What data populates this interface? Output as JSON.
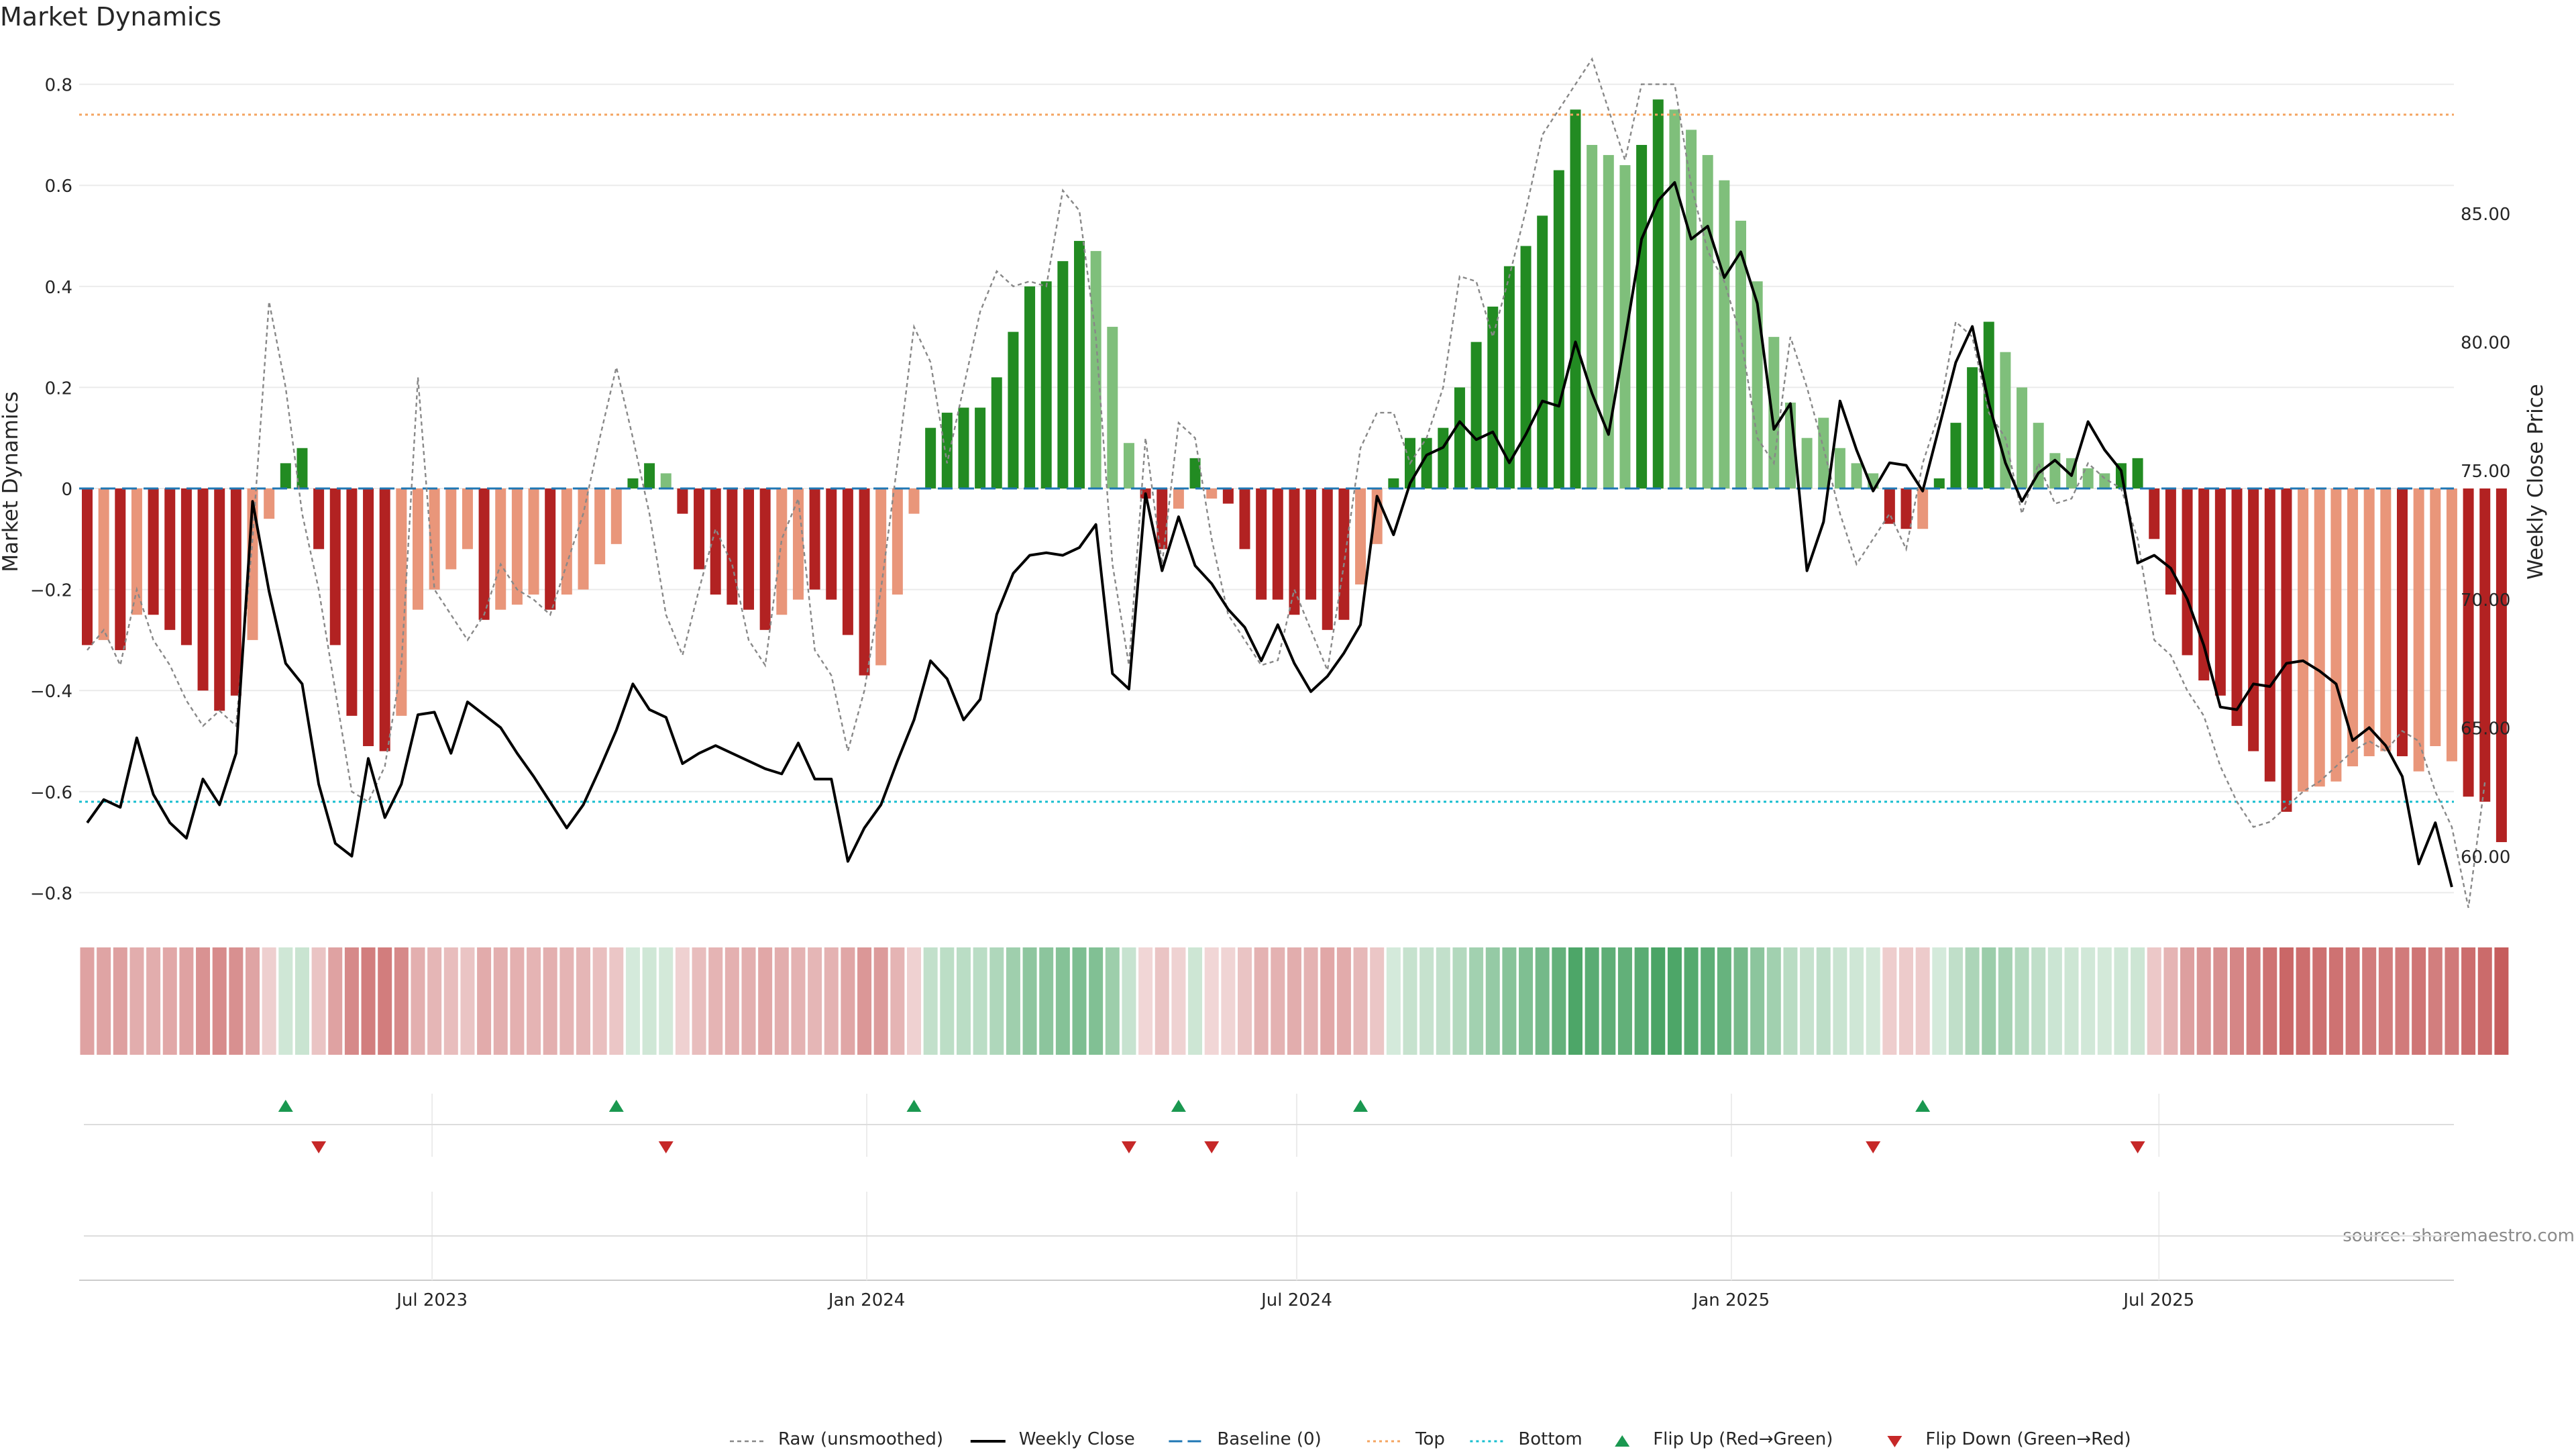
{
  "chart_data": {
    "type": "bar",
    "title": "Market Dynamics",
    "ylabel": "Market Dynamics",
    "y2label": "Weekly Close Price",
    "source": "source: sharemaestro.com",
    "ylim": [
      -0.85,
      0.85
    ],
    "y2lim": [
      57.6,
      91.0
    ],
    "yticks": [
      "0.8",
      "0.6",
      "0.4",
      "0.2",
      "0",
      "−0.2",
      "−0.4",
      "−0.6",
      "−0.8"
    ],
    "y2ticks": [
      "85.00",
      "80.00",
      "75.00",
      "70.00",
      "65.00",
      "60.00"
    ],
    "xticks": [
      "Jul 2023",
      "Jan 2024",
      "Jul 2024",
      "Jan 2025",
      "Jul 2025"
    ],
    "xtick_dates": [
      "2023-07-01",
      "2024-01-01",
      "2024-07-01",
      "2025-01-01",
      "2025-07-01"
    ],
    "start_date": "2023-02-05",
    "top_level": 0.74,
    "bottom_level": -0.62,
    "grid": true,
    "legend_position": "bottom-center",
    "colors": {
      "strong_green": "#228b22",
      "weak_green": "#7fbf7b",
      "strong_red": "#b22222",
      "weak_red": "#e9967a",
      "raw": "#888888",
      "close": "#000000",
      "baseline": "#1f77b4",
      "top": "#f4a460",
      "bottom": "#17becf",
      "flip_up": "#1a9850",
      "flip_down": "#c62828"
    },
    "legend": [
      {
        "label": "Raw (unsmoothed)",
        "style": "raw"
      },
      {
        "label": "Weekly Close",
        "style": "close"
      },
      {
        "label": "Baseline (0)",
        "style": "baseline"
      },
      {
        "label": "Top",
        "style": "top"
      },
      {
        "label": "Bottom",
        "style": "bottom"
      },
      {
        "label": "Flip Up (Red→Green)",
        "style": "flip_up"
      },
      {
        "label": "Flip Down (Green→Red)",
        "style": "flip_down"
      }
    ],
    "series": [
      {
        "name": "Market Dynamics",
        "values": [
          -0.31,
          -0.3,
          -0.32,
          -0.25,
          -0.25,
          -0.28,
          -0.31,
          -0.4,
          -0.44,
          -0.41,
          -0.3,
          -0.06,
          0.05,
          0.08,
          -0.12,
          -0.31,
          -0.45,
          -0.51,
          -0.52,
          -0.45,
          -0.24,
          -0.2,
          -0.16,
          -0.12,
          -0.26,
          -0.24,
          -0.23,
          -0.21,
          -0.24,
          -0.21,
          -0.2,
          -0.15,
          -0.11,
          0.02,
          0.05,
          0.03,
          -0.05,
          -0.16,
          -0.21,
          -0.23,
          -0.24,
          -0.28,
          -0.25,
          -0.22,
          -0.2,
          -0.22,
          -0.29,
          -0.37,
          -0.35,
          -0.21,
          -0.05,
          0.12,
          0.15,
          0.16,
          0.16,
          0.22,
          0.31,
          0.4,
          0.41,
          0.45,
          0.49,
          0.47,
          0.32,
          0.09,
          -0.02,
          -0.12,
          -0.04,
          0.06,
          -0.02,
          -0.03,
          -0.12,
          -0.22,
          -0.22,
          -0.25,
          -0.22,
          -0.28,
          -0.26,
          -0.19,
          -0.11,
          0.02,
          0.1,
          0.1,
          0.12,
          0.2,
          0.29,
          0.36,
          0.44,
          0.48,
          0.54,
          0.63,
          0.75,
          0.68,
          0.66,
          0.64,
          0.68,
          0.77,
          0.75,
          0.71,
          0.66,
          0.61,
          0.53,
          0.41,
          0.3,
          0.17,
          0.1,
          0.14,
          0.08,
          0.05,
          0.03,
          -0.07,
          -0.08,
          -0.08,
          0.02,
          0.13,
          0.24,
          0.33,
          0.27,
          0.2,
          0.13,
          0.07,
          0.06,
          0.04,
          0.03,
          0.05,
          0.06,
          -0.1,
          -0.21,
          -0.33,
          -0.38,
          -0.41,
          -0.47,
          -0.52,
          -0.58,
          -0.64,
          -0.6,
          -0.59,
          -0.58,
          -0.55,
          -0.53,
          -0.52,
          -0.53,
          -0.56,
          -0.51,
          -0.54,
          -0.61,
          -0.62,
          -0.7
        ],
        "strength": [
          "strong",
          "weak",
          "strong",
          "weak",
          "strong",
          "strong",
          "strong",
          "strong",
          "strong",
          "strong",
          "weak",
          "weak",
          "strong",
          "strong",
          "strong",
          "strong",
          "strong",
          "strong",
          "strong",
          "weak",
          "weak",
          "weak",
          "weak",
          "weak",
          "strong",
          "weak",
          "weak",
          "weak",
          "strong",
          "weak",
          "weak",
          "weak",
          "weak",
          "strong",
          "strong",
          "weak",
          "strong",
          "strong",
          "strong",
          "strong",
          "strong",
          "strong",
          "weak",
          "weak",
          "strong",
          "strong",
          "strong",
          "strong",
          "weak",
          "weak",
          "weak",
          "strong",
          "strong",
          "strong",
          "strong",
          "strong",
          "strong",
          "strong",
          "strong",
          "strong",
          "strong",
          "weak",
          "weak",
          "weak",
          "strong",
          "strong",
          "weak",
          "strong",
          "weak",
          "strong",
          "strong",
          "strong",
          "strong",
          "strong",
          "strong",
          "strong",
          "strong",
          "weak",
          "weak",
          "strong",
          "strong",
          "strong",
          "strong",
          "strong",
          "strong",
          "strong",
          "strong",
          "strong",
          "strong",
          "strong",
          "strong",
          "weak",
          "weak",
          "weak",
          "strong",
          "strong",
          "weak",
          "weak",
          "weak",
          "weak",
          "weak",
          "weak",
          "weak",
          "weak",
          "weak",
          "weak",
          "weak",
          "weak",
          "weak",
          "strong",
          "strong",
          "weak",
          "strong",
          "strong",
          "strong",
          "strong",
          "weak",
          "weak",
          "weak",
          "weak",
          "weak",
          "weak",
          "weak",
          "strong",
          "strong",
          "strong",
          "strong",
          "strong",
          "strong",
          "strong",
          "strong",
          "strong",
          "strong",
          "strong",
          "weak",
          "weak",
          "weak",
          "weak",
          "weak",
          "weak",
          "strong",
          "weak",
          "weak",
          "weak",
          "strong",
          "strong",
          "strong"
        ]
      },
      {
        "name": "Raw (unsmoothed)",
        "values": [
          -0.32,
          -0.28,
          -0.35,
          -0.2,
          -0.3,
          -0.35,
          -0.42,
          -0.47,
          -0.44,
          -0.47,
          -0.1,
          0.37,
          0.2,
          -0.05,
          -0.2,
          -0.4,
          -0.6,
          -0.62,
          -0.55,
          -0.35,
          0.22,
          -0.2,
          -0.25,
          -0.3,
          -0.25,
          -0.15,
          -0.2,
          -0.22,
          -0.25,
          -0.15,
          -0.05,
          0.1,
          0.24,
          0.1,
          -0.05,
          -0.25,
          -0.33,
          -0.2,
          -0.08,
          -0.15,
          -0.3,
          -0.35,
          -0.1,
          -0.02,
          -0.32,
          -0.37,
          -0.52,
          -0.4,
          -0.2,
          0.05,
          0.32,
          0.25,
          0.05,
          0.2,
          0.35,
          0.43,
          0.4,
          0.41,
          0.4,
          0.59,
          0.55,
          0.3,
          -0.15,
          -0.35,
          0.1,
          -0.15,
          0.13,
          0.1,
          -0.1,
          -0.25,
          -0.3,
          -0.35,
          -0.34,
          -0.2,
          -0.28,
          -0.36,
          -0.15,
          0.08,
          0.15,
          0.15,
          0.05,
          0.1,
          0.2,
          0.42,
          0.41,
          0.3,
          0.42,
          0.55,
          0.7,
          0.75,
          0.8,
          0.85,
          0.75,
          0.65,
          0.8,
          0.8,
          0.8,
          0.6,
          0.47,
          0.41,
          0.3,
          0.1,
          0.05,
          0.3,
          0.2,
          0.08,
          -0.05,
          -0.15,
          -0.1,
          -0.05,
          -0.12,
          0.05,
          0.15,
          0.33,
          0.3,
          0.15,
          0.1,
          -0.05,
          0.05,
          -0.03,
          -0.02,
          0.05,
          0.02,
          0.0,
          -0.1,
          -0.3,
          -0.33,
          -0.4,
          -0.45,
          -0.55,
          -0.62,
          -0.67,
          -0.66,
          -0.63,
          -0.6,
          -0.58,
          -0.55,
          -0.52,
          -0.5,
          -0.52,
          -0.48,
          -0.5,
          -0.6,
          -0.67,
          -0.83,
          -0.58
        ]
      },
      {
        "name": "Weekly Close",
        "values": [
          61.3,
          62.2,
          61.9,
          64.6,
          62.4,
          61.3,
          60.7,
          63.0,
          62.0,
          64.0,
          73.8,
          70.3,
          67.5,
          66.7,
          62.8,
          60.5,
          60.0,
          63.8,
          61.5,
          62.8,
          65.5,
          65.6,
          64.0,
          66.0,
          65.5,
          65.0,
          64.0,
          63.1,
          62.1,
          61.1,
          62.0,
          63.4,
          64.9,
          66.7,
          65.7,
          65.4,
          63.6,
          64.0,
          64.3,
          64.0,
          63.7,
          63.4,
          63.2,
          64.4,
          63.0,
          63.0,
          59.8,
          61.1,
          62.0,
          63.7,
          65.3,
          67.6,
          66.9,
          65.3,
          66.1,
          69.4,
          71.0,
          71.7,
          71.8,
          71.7,
          72.0,
          72.9,
          67.1,
          66.5,
          74.1,
          71.1,
          73.2,
          71.3,
          70.6,
          69.6,
          68.9,
          67.6,
          69.0,
          67.5,
          66.4,
          67.0,
          67.9,
          69.0,
          74.0,
          72.5,
          74.5,
          75.6,
          75.9,
          76.9,
          76.2,
          76.5,
          75.3,
          76.4,
          77.7,
          77.5,
          80.0,
          78.0,
          76.4,
          80.1,
          84.0,
          85.5,
          86.2,
          84.0,
          84.5,
          82.5,
          83.5,
          81.5,
          76.6,
          77.6,
          71.1,
          73.0,
          77.7,
          75.8,
          74.2,
          75.3,
          75.2,
          74.2,
          76.7,
          79.2,
          80.6,
          77.6,
          75.3,
          73.8,
          74.9,
          75.4,
          74.8,
          76.9,
          75.8,
          75.0,
          71.4,
          71.7,
          71.2,
          70.0,
          68.2,
          65.8,
          65.7,
          66.7,
          66.6,
          67.5,
          67.6,
          67.2,
          66.7,
          64.5,
          65.0,
          64.3,
          63.1,
          59.7,
          61.3,
          58.8
        ]
      }
    ],
    "flips_up_index": [
      12,
      32,
      50,
      66,
      77,
      111
    ],
    "flips_down_index": [
      14,
      35,
      63,
      68,
      108,
      124
    ]
  }
}
